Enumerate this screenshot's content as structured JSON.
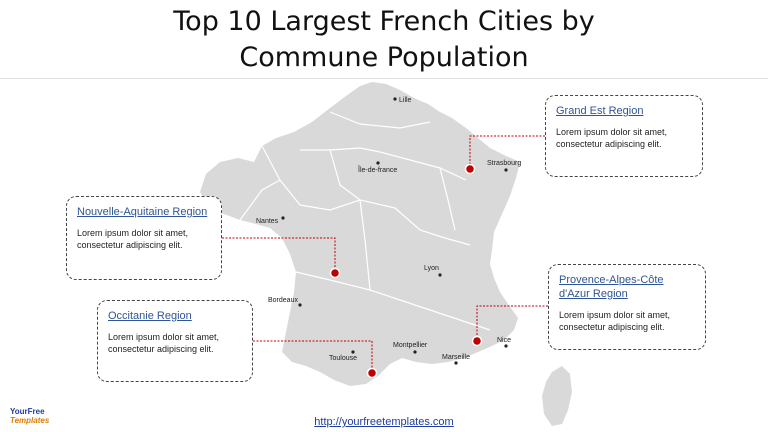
{
  "title_line1": "Top 10 Largest French Cities by",
  "title_line2": "Commune Population",
  "map_fill": "#d9d9d9",
  "marker_color": "#c00000",
  "connector_color": "#c00000",
  "cities": [
    {
      "name": "Lille"
    },
    {
      "name": "Île-de-france"
    },
    {
      "name": "Strasbourg"
    },
    {
      "name": "Nantes"
    },
    {
      "name": "Lyon"
    },
    {
      "name": "Bordeaux"
    },
    {
      "name": "Montpellier"
    },
    {
      "name": "Nice"
    },
    {
      "name": "Toulouse"
    },
    {
      "name": "Marseille"
    }
  ],
  "callouts": {
    "grand_est": {
      "region": "Grand Est Region",
      "text": "Lorem ipsum dolor sit amet, consectetur adipiscing elit."
    },
    "nouvelle_aquitaine": {
      "region": "Nouvelle-Aquitaine Region",
      "text": "Lorem ipsum dolor sit amet, consectetur adipiscing elit."
    },
    "provence": {
      "region": "Provence-Alpes-Côte d'Azur Region",
      "text": "Lorem ipsum dolor sit amet, consectetur adipiscing elit."
    },
    "occitanie": {
      "region": "Occitanie Region",
      "text": "Lorem ipsum dolor sit amet, consectetur adipiscing elit."
    }
  },
  "footer_url": "http://yourfreetemplates.com",
  "logo": {
    "line1": "YourFree",
    "line2": "Templates"
  }
}
